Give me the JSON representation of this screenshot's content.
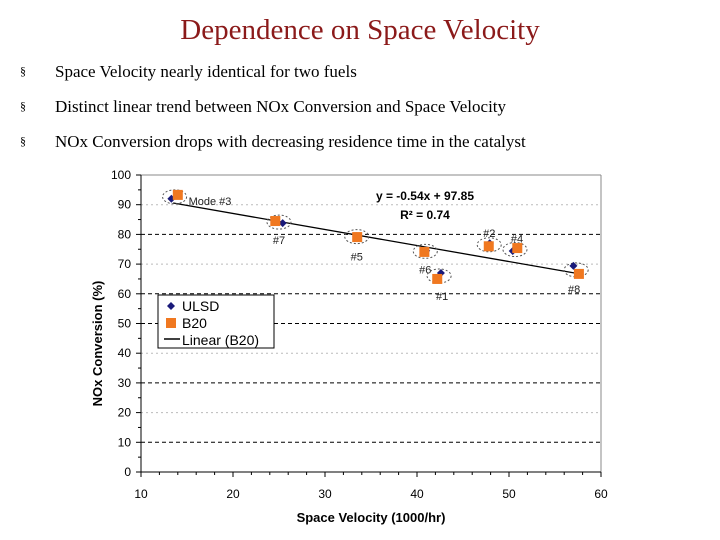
{
  "slide": {
    "title": "Dependence on Space Velocity",
    "bullets": [
      "Space Velocity nearly identical for two fuels",
      "Distinct linear trend between NOx Conversion and Space Velocity",
      "NOx Conversion drops with decreasing residence time in the catalyst"
    ],
    "bullet_marker": "§"
  },
  "chart_data": {
    "type": "scatter",
    "xlabel": "Space Velocity (1000/hr)",
    "ylabel": "NOx Conversion (%)",
    "xlim": [
      10,
      60
    ],
    "ylim": [
      0,
      100
    ],
    "xticks": [
      10,
      20,
      30,
      40,
      50,
      60
    ],
    "yticks": [
      0,
      10,
      20,
      30,
      40,
      50,
      60,
      70,
      80,
      90,
      100
    ],
    "grid": true,
    "legend_placement": "left-middle",
    "series": [
      {
        "name": "ULSD",
        "marker": "diamond",
        "color": "#1a1a7a",
        "points": [
          {
            "x": 13.3,
            "y": 92
          },
          {
            "x": 25.4,
            "y": 83.8
          },
          {
            "x": 33.4,
            "y": 79.4
          },
          {
            "x": 41.0,
            "y": 74.5
          },
          {
            "x": 42.6,
            "y": 67
          },
          {
            "x": 47.9,
            "y": 77
          },
          {
            "x": 50.4,
            "y": 74.4
          },
          {
            "x": 57.0,
            "y": 69.4
          }
        ]
      },
      {
        "name": "B20",
        "marker": "square",
        "color": "#f07820",
        "points": [
          {
            "x": 14.0,
            "y": 93.3
          },
          {
            "x": 24.6,
            "y": 84.5
          },
          {
            "x": 33.5,
            "y": 79.1
          },
          {
            "x": 40.8,
            "y": 74.1
          },
          {
            "x": 42.2,
            "y": 65
          },
          {
            "x": 47.8,
            "y": 76
          },
          {
            "x": 50.9,
            "y": 75.4
          },
          {
            "x": 57.6,
            "y": 66.7
          }
        ]
      },
      {
        "name": "Linear (B20)",
        "type": "line",
        "color": "#000000",
        "slope": -0.54,
        "intercept": 97.85
      }
    ],
    "point_labels": [
      "Mode #3",
      "#7",
      "#5",
      "#6",
      "#1",
      "#2",
      "#4",
      "#8"
    ],
    "annotations": {
      "equation": "y = -0.54x + 97.85",
      "r2": "R² = 0.74"
    }
  }
}
